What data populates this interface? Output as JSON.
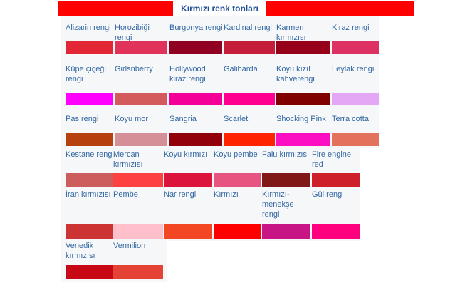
{
  "header": {
    "title": "Kırmızı renk tonları"
  },
  "colors": {
    "header_accent": "#ff0000",
    "label_text": "#3468a3",
    "title_text": "#1f4e96",
    "panel_bg": "#f6f7f8"
  },
  "swatches": [
    {
      "label": "Alizarin rengi",
      "color": "#e32636"
    },
    {
      "label": "Horozibiği rengi",
      "color": "#e0325a"
    },
    {
      "label": "Burgonya rengi",
      "color": "#900020"
    },
    {
      "label": "Kardinal rengi",
      "color": "#c41e3a"
    },
    {
      "label": "Karmen kırmızısı",
      "color": "#960018"
    },
    {
      "label": "Kiraz rengi",
      "color": "#de3163"
    },
    {
      "label": "Küpe çiçeği rengi",
      "color": "#ff00ff"
    },
    {
      "label": "Girlsnberry",
      "color": "#d45b5b"
    },
    {
      "label": "Hollywood kiraz rengi",
      "color": "#f40099"
    },
    {
      "label": "Galibarda",
      "color": "#ff0090"
    },
    {
      "label": "Koyu kızıl kahverengi",
      "color": "#800000"
    },
    {
      "label": "Leylak rengi",
      "color": "#e3a7f5"
    },
    {
      "label": "Pas rengi",
      "color": "#b7410e"
    },
    {
      "label": "Koyu mor",
      "color": "#d48f97"
    },
    {
      "label": "Sangria",
      "color": "#92000a"
    },
    {
      "label": "Scarlet",
      "color": "#ff2400"
    },
    {
      "label": "Shocking Pink",
      "color": "#fc0fc0"
    },
    {
      "label": "Terra cotta",
      "color": "#e2725b"
    },
    {
      "label": "Kestane rengi",
      "color": "#cd5c5c"
    },
    {
      "label": "Mercan kırmızısı",
      "color": "#ff4040"
    },
    {
      "label": "Koyu kırmızı",
      "color": "#dc143c"
    },
    {
      "label": "Koyu pembe",
      "color": "#e75480"
    },
    {
      "label": "Falu kırmızısı",
      "color": "#801818"
    },
    {
      "label": "Fire engine red",
      "color": "#ce2029"
    },
    {
      "label": "İran kırmızısı",
      "color": "#cc3333"
    },
    {
      "label": "Pembe",
      "color": "#ffc0cb"
    },
    {
      "label": "Nar rengi",
      "color": "#f34723"
    },
    {
      "label": "Kırmızı",
      "color": "#ff0000"
    },
    {
      "label": "Kırmızı-menekşe rengi",
      "color": "#c71585"
    },
    {
      "label": "Gül rengi",
      "color": "#ff007f"
    },
    {
      "label": "Venedik kırmızısı",
      "color": "#c80815"
    },
    {
      "label": "Vermilion",
      "color": "#e34234"
    }
  ]
}
